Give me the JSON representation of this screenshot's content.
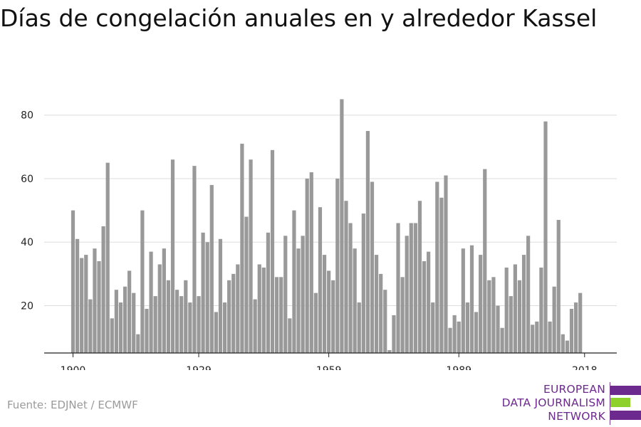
{
  "title": "Días de congelación anuales en y alrededor Kassel",
  "source": "Fuente: EDJNet / ECMWF",
  "logo": {
    "line1": "EUROPEAN",
    "line2": "DATA JOURNALISM",
    "line3": "NETWORK",
    "colors": {
      "text": "#6d2a8e",
      "bar_purple": "#6d2a8e",
      "bar_green": "#8fd12c"
    }
  },
  "colors": {
    "bar": "#999999",
    "grid": "#dddddd",
    "axis": "#222222"
  },
  "chart_data": {
    "type": "bar",
    "xlabel": "",
    "ylabel": "",
    "x_ticks": [
      1900,
      1929,
      1959,
      1989,
      2018
    ],
    "y_ticks": [
      20,
      40,
      60,
      80
    ],
    "ylim": [
      5,
      87
    ],
    "grid": true,
    "x": [
      1900,
      1901,
      1902,
      1903,
      1904,
      1905,
      1906,
      1907,
      1908,
      1909,
      1910,
      1911,
      1912,
      1913,
      1914,
      1915,
      1916,
      1917,
      1918,
      1919,
      1920,
      1921,
      1922,
      1923,
      1924,
      1925,
      1926,
      1927,
      1928,
      1929,
      1930,
      1931,
      1932,
      1933,
      1934,
      1935,
      1936,
      1937,
      1938,
      1939,
      1940,
      1941,
      1942,
      1943,
      1944,
      1945,
      1946,
      1947,
      1948,
      1949,
      1950,
      1951,
      1952,
      1953,
      1954,
      1955,
      1956,
      1957,
      1958,
      1959,
      1960,
      1961,
      1962,
      1963,
      1964,
      1965,
      1966,
      1967,
      1968,
      1969,
      1970,
      1971,
      1972,
      1973,
      1974,
      1975,
      1976,
      1977,
      1978,
      1979,
      1980,
      1981,
      1982,
      1983,
      1984,
      1985,
      1986,
      1987,
      1988,
      1989,
      1990,
      1991,
      1992,
      1993,
      1994,
      1995,
      1996,
      1997,
      1998,
      1999,
      2000,
      2001,
      2002,
      2003,
      2004,
      2005,
      2006,
      2007,
      2008,
      2009,
      2010,
      2011,
      2012,
      2013,
      2014,
      2015,
      2016,
      2017,
      2018
    ],
    "values": [
      50,
      41,
      35,
      36,
      22,
      38,
      34,
      45,
      65,
      16,
      25,
      21,
      26,
      31,
      24,
      11,
      50,
      19,
      37,
      23,
      33,
      38,
      28,
      66,
      25,
      23,
      28,
      21,
      64,
      23,
      43,
      40,
      58,
      18,
      41,
      21,
      28,
      30,
      33,
      71,
      48,
      66,
      22,
      33,
      32,
      43,
      69,
      29,
      29,
      42,
      16,
      50,
      38,
      42,
      60,
      62,
      24,
      51,
      36,
      31,
      28,
      60,
      85,
      53,
      46,
      38,
      21,
      49,
      75,
      59,
      36,
      30,
      25,
      6,
      17,
      46,
      29,
      42,
      46,
      46,
      53,
      34,
      37,
      21,
      59,
      54,
      61,
      13,
      17,
      15,
      38,
      21,
      39,
      18,
      36,
      63,
      28,
      29,
      20,
      13,
      32,
      23,
      33,
      28,
      36,
      42,
      14,
      15,
      32,
      78,
      15,
      26,
      47,
      11,
      9,
      19,
      21,
      24,
      null
    ]
  }
}
